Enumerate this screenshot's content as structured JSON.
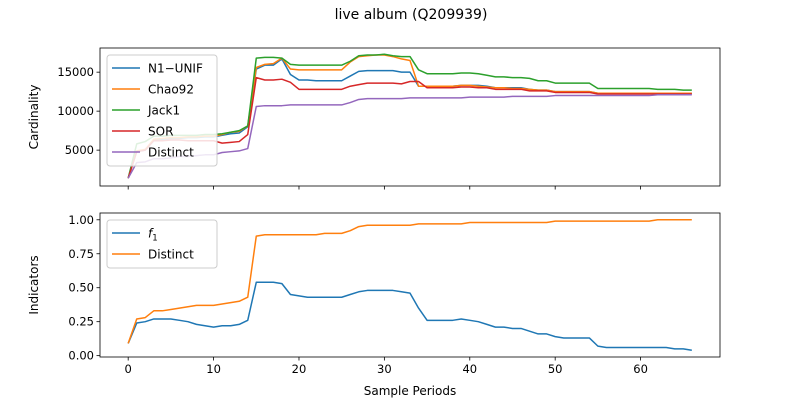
{
  "figure": {
    "title": "live album (Q209939)",
    "xlabel": "Sample Periods"
  },
  "chart_data": [
    {
      "type": "line",
      "ylabel": "Cardinality",
      "xlim": [
        -3.3,
        69.3
      ],
      "ylim": [
        400,
        18100
      ],
      "xticks": [
        0,
        10,
        20,
        30,
        40,
        50,
        60
      ],
      "xtick_labels_visible": false,
      "yticks": [
        5000,
        10000,
        15000
      ],
      "ytick_labels": [
        "5000",
        "10000",
        "15000"
      ],
      "grid": false,
      "legend_position": "upper-left",
      "x": [
        0,
        1,
        2,
        3,
        4,
        5,
        6,
        7,
        8,
        9,
        10,
        11,
        12,
        13,
        14,
        15,
        16,
        17,
        18,
        19,
        20,
        21,
        22,
        23,
        24,
        25,
        26,
        27,
        28,
        29,
        30,
        31,
        32,
        33,
        34,
        35,
        36,
        37,
        38,
        39,
        40,
        41,
        42,
        43,
        44,
        45,
        46,
        47,
        48,
        49,
        50,
        51,
        52,
        53,
        54,
        55,
        56,
        57,
        58,
        59,
        60,
        61,
        62,
        63,
        64,
        65,
        66
      ],
      "series": [
        {
          "name": "N1−UNIF",
          "color": "#1f77b4",
          "values": [
            1400,
            4800,
            5000,
            6300,
            6400,
            6500,
            6500,
            6600,
            6600,
            6700,
            6700,
            6900,
            7100,
            7200,
            8000,
            15400,
            15900,
            15900,
            16700,
            14700,
            14000,
            14000,
            13900,
            13900,
            13900,
            13900,
            14500,
            15100,
            15200,
            15200,
            15200,
            15200,
            15000,
            15000,
            13200,
            13200,
            13200,
            13200,
            13200,
            13300,
            13300,
            13300,
            13200,
            13000,
            13000,
            13000,
            13000,
            12800,
            12700,
            12700,
            12500,
            12500,
            12500,
            12500,
            12500,
            12300,
            12300,
            12300,
            12300,
            12300,
            12300,
            12300,
            12300,
            12300,
            12300,
            12300,
            12300
          ]
        },
        {
          "name": "Chao92",
          "color": "#ff7f0e",
          "values": [
            1400,
            4900,
            5100,
            6400,
            6500,
            6600,
            6600,
            6700,
            6700,
            6800,
            6800,
            7000,
            7300,
            7400,
            8100,
            15600,
            16000,
            16100,
            16800,
            15400,
            15300,
            15300,
            15300,
            15300,
            15300,
            15300,
            16300,
            17000,
            17100,
            17200,
            17200,
            17000,
            16700,
            16500,
            13200,
            13200,
            13200,
            13200,
            13200,
            13300,
            13300,
            13200,
            13100,
            13000,
            13000,
            12900,
            12900,
            12800,
            12700,
            12700,
            12500,
            12500,
            12500,
            12500,
            12500,
            12300,
            12300,
            12300,
            12300,
            12300,
            12300,
            12300,
            12300,
            12300,
            12300,
            12300,
            12300
          ]
        },
        {
          "name": "Jack1",
          "color": "#2ca02c",
          "values": [
            1400,
            5800,
            6100,
            6800,
            6800,
            6900,
            6900,
            6900,
            6900,
            7000,
            7000,
            7100,
            7300,
            7500,
            8100,
            16800,
            16900,
            16900,
            16800,
            16000,
            15900,
            15900,
            15900,
            15900,
            15900,
            15900,
            16400,
            17100,
            17200,
            17200,
            17300,
            17100,
            17000,
            17000,
            15300,
            14800,
            14800,
            14800,
            14800,
            14900,
            14900,
            14800,
            14600,
            14400,
            14400,
            14300,
            14300,
            14200,
            13900,
            13900,
            13600,
            13600,
            13600,
            13600,
            13600,
            12900,
            12900,
            12900,
            12900,
            12900,
            12900,
            12900,
            12800,
            12800,
            12800,
            12700,
            12700
          ]
        },
        {
          "name": "SOR",
          "color": "#d62728",
          "values": [
            1400,
            4800,
            5000,
            6200,
            6200,
            6300,
            6300,
            6200,
            6200,
            6200,
            6200,
            5900,
            6000,
            6100,
            7000,
            14300,
            14000,
            14000,
            14100,
            13700,
            12800,
            12800,
            12800,
            12800,
            12800,
            12800,
            13200,
            13400,
            13600,
            13600,
            13600,
            13600,
            13500,
            13800,
            13800,
            13000,
            13000,
            13000,
            13000,
            13100,
            13100,
            13000,
            13000,
            12800,
            12800,
            12800,
            12800,
            12600,
            12600,
            12600,
            12400,
            12400,
            12400,
            12400,
            12400,
            12200,
            12200,
            12200,
            12200,
            12200,
            12200,
            12200,
            12200,
            12200,
            12200,
            12200,
            12200
          ]
        },
        {
          "name": "Distinct",
          "color": "#9467bd",
          "values": [
            1400,
            3400,
            3500,
            3900,
            3900,
            4000,
            4200,
            4200,
            4300,
            4400,
            4400,
            4700,
            4800,
            4900,
            5200,
            10600,
            10700,
            10700,
            10700,
            10800,
            10800,
            10800,
            10800,
            10800,
            10800,
            10800,
            11100,
            11500,
            11600,
            11600,
            11600,
            11600,
            11600,
            11700,
            11700,
            11700,
            11700,
            11700,
            11700,
            11700,
            11800,
            11800,
            11800,
            11800,
            11800,
            11900,
            11900,
            11900,
            11900,
            11900,
            12000,
            12000,
            12000,
            12000,
            12000,
            12000,
            12000,
            12000,
            12000,
            12000,
            12000,
            12000,
            12100,
            12100,
            12100,
            12100,
            12100
          ]
        }
      ]
    },
    {
      "type": "line",
      "ylabel": "Indicators",
      "xlim": [
        -3.3,
        69.3
      ],
      "ylim": [
        -0.01,
        1.05
      ],
      "xticks": [
        0,
        10,
        20,
        30,
        40,
        50,
        60
      ],
      "xtick_labels": [
        "0",
        "10",
        "20",
        "30",
        "40",
        "50",
        "60"
      ],
      "yticks": [
        0.0,
        0.25,
        0.5,
        0.75,
        1.0
      ],
      "ytick_labels": [
        "0.00",
        "0.25",
        "0.50",
        "0.75",
        "1.00"
      ],
      "grid": false,
      "legend_position": "upper-left",
      "x": [
        0,
        1,
        2,
        3,
        4,
        5,
        6,
        7,
        8,
        9,
        10,
        11,
        12,
        13,
        14,
        15,
        16,
        17,
        18,
        19,
        20,
        21,
        22,
        23,
        24,
        25,
        26,
        27,
        28,
        29,
        30,
        31,
        32,
        33,
        34,
        35,
        36,
        37,
        38,
        39,
        40,
        41,
        42,
        43,
        44,
        45,
        46,
        47,
        48,
        49,
        50,
        51,
        52,
        53,
        54,
        55,
        56,
        57,
        58,
        59,
        60,
        61,
        62,
        63,
        64,
        65,
        66
      ],
      "series": [
        {
          "name": "f1",
          "color": "#1f77b4",
          "values": [
            0.09,
            0.24,
            0.25,
            0.27,
            0.27,
            0.27,
            0.26,
            0.25,
            0.23,
            0.22,
            0.21,
            0.22,
            0.22,
            0.23,
            0.26,
            0.54,
            0.54,
            0.54,
            0.53,
            0.45,
            0.44,
            0.43,
            0.43,
            0.43,
            0.43,
            0.43,
            0.45,
            0.47,
            0.48,
            0.48,
            0.48,
            0.48,
            0.47,
            0.46,
            0.35,
            0.26,
            0.26,
            0.26,
            0.26,
            0.27,
            0.26,
            0.25,
            0.23,
            0.21,
            0.21,
            0.2,
            0.2,
            0.18,
            0.16,
            0.16,
            0.14,
            0.13,
            0.13,
            0.13,
            0.13,
            0.07,
            0.06,
            0.06,
            0.06,
            0.06,
            0.06,
            0.06,
            0.06,
            0.06,
            0.05,
            0.05,
            0.04
          ]
        },
        {
          "name": "Distinct",
          "color": "#ff7f0e",
          "values": [
            0.09,
            0.27,
            0.28,
            0.33,
            0.33,
            0.34,
            0.35,
            0.36,
            0.37,
            0.37,
            0.37,
            0.38,
            0.39,
            0.4,
            0.43,
            0.88,
            0.89,
            0.89,
            0.89,
            0.89,
            0.89,
            0.89,
            0.89,
            0.9,
            0.9,
            0.9,
            0.92,
            0.95,
            0.96,
            0.96,
            0.96,
            0.96,
            0.96,
            0.96,
            0.97,
            0.97,
            0.97,
            0.97,
            0.97,
            0.97,
            0.98,
            0.98,
            0.98,
            0.98,
            0.98,
            0.98,
            0.98,
            0.98,
            0.98,
            0.98,
            0.99,
            0.99,
            0.99,
            0.99,
            0.99,
            0.99,
            0.99,
            0.99,
            0.99,
            0.99,
            0.99,
            0.99,
            1.0,
            1.0,
            1.0,
            1.0,
            1.0
          ]
        }
      ]
    }
  ]
}
